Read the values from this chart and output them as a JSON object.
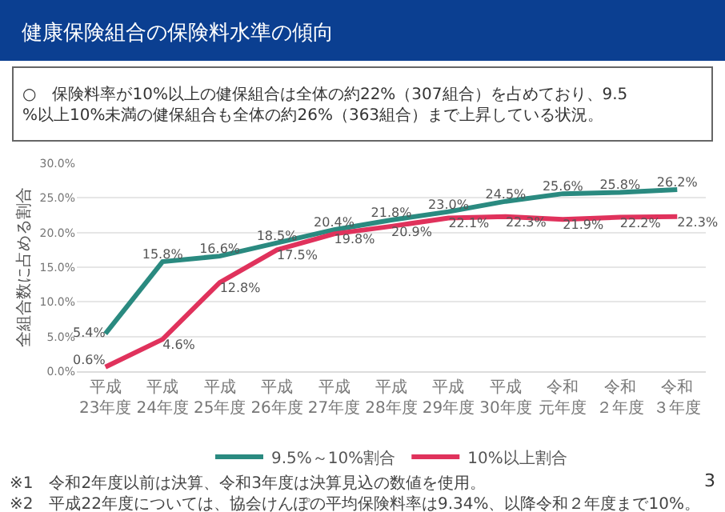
{
  "chart_data": {
    "type": "line",
    "title": "健康保険組合の保険料水準の傾向",
    "subtitle": "○　保険料率が10%以上の健保組合は全体の約22%（307組合）を占めており、9.5%以上10%未満の健保組合も全体の約26%（363組合）まで上昇している状況。",
    "ylabel": "全組合数に占める割合",
    "categories": [
      "平成23年度",
      "平成24年度",
      "平成25年度",
      "平成26年度",
      "平成27年度",
      "平成28年度",
      "平成29年度",
      "平成30年度",
      "令和元年度",
      "令和２年度",
      "令和３年度"
    ],
    "series": [
      {
        "name": "9.5%～10%割合",
        "color": "#2a8a80",
        "values": [
          5.4,
          15.8,
          16.6,
          18.5,
          20.4,
          21.8,
          23.0,
          24.5,
          25.6,
          25.8,
          26.2
        ],
        "value_labels": [
          "5.4%",
          "15.8%",
          "16.6%",
          "18.5%",
          "20.4%",
          "21.8%",
          "23.0%",
          "24.5%",
          "25.6%",
          "25.8%",
          "26.2%"
        ]
      },
      {
        "name": "10%以上割合",
        "color": "#e0325c",
        "values": [
          0.6,
          4.6,
          12.8,
          17.5,
          19.8,
          20.9,
          22.1,
          22.3,
          21.9,
          22.2,
          22.3
        ],
        "value_labels": [
          "0.6%",
          "4.6%",
          "12.8%",
          "17.5%",
          "19.8%",
          "20.9%",
          "22.1%",
          "22.3%",
          "21.9%",
          "22.2%",
          "22.3%"
        ]
      }
    ],
    "ylim": [
      0,
      30
    ],
    "yticks": [
      {
        "value": 0,
        "label": "0.0%"
      },
      {
        "value": 5,
        "label": "5.0%"
      },
      {
        "value": 10,
        "label": "10.0%"
      },
      {
        "value": 15,
        "label": "15.0%"
      },
      {
        "value": 20,
        "label": "20.0%"
      },
      {
        "value": 25,
        "label": "25.0%"
      },
      {
        "value": 30,
        "label": "30.0%"
      }
    ],
    "grid": "y",
    "legend": "bottom",
    "marker": "none",
    "line_style": "solid",
    "annotations": [
      "※1　令和2年度以前は決算、令和3年度は決算見込の数値を使用。",
      "※2　平成22年度については、協会けんぽの平均保険料率は9.34%、以降令和２年度まで10%。",
      "3"
    ]
  }
}
